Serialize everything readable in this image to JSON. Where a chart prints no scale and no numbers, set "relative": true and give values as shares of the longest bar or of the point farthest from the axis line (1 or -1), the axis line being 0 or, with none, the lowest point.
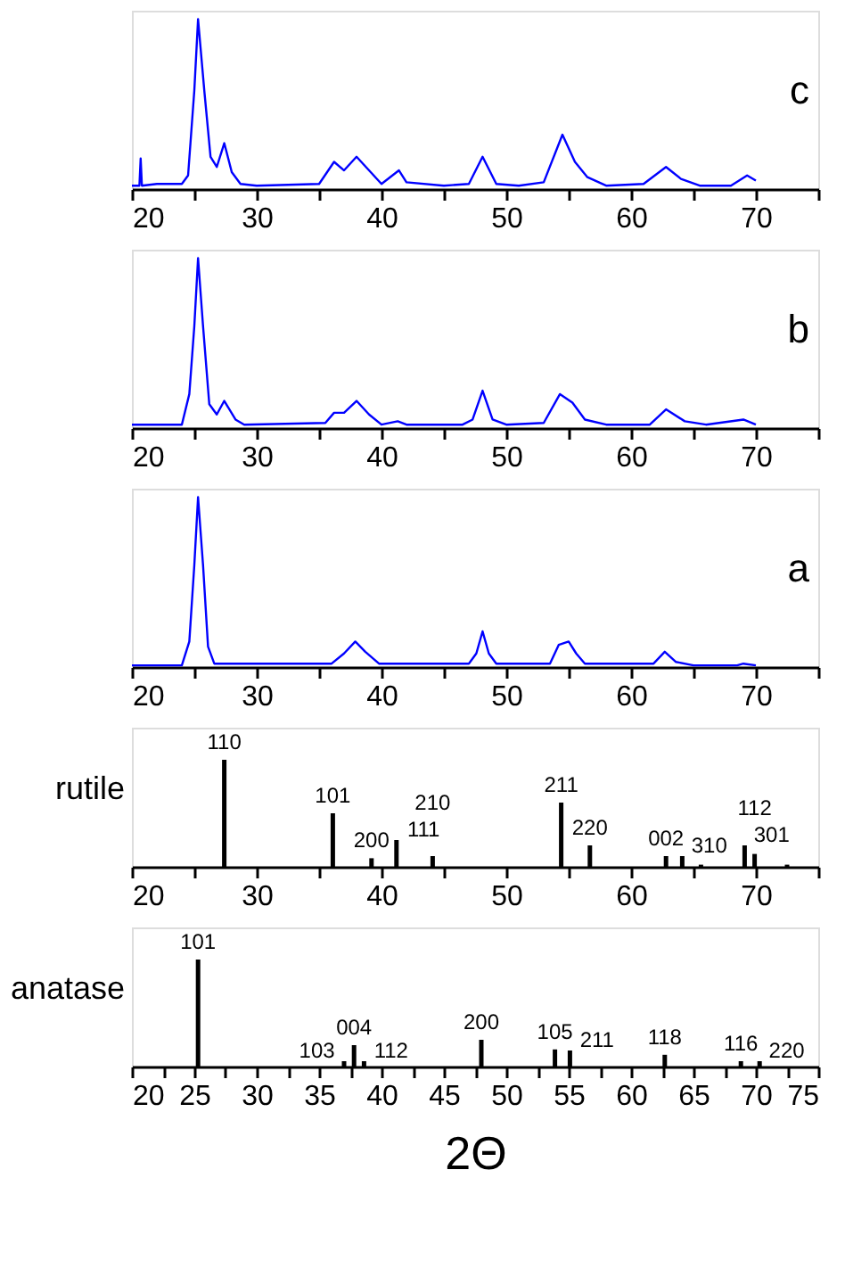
{
  "chart_data": [
    {
      "type": "line",
      "relative": true,
      "annotations": [
        "c"
      ],
      "xlim": [
        20,
        75
      ],
      "xticks": [
        20,
        {
          "value": 25,
          "label": null
        },
        30,
        {
          "value": 35,
          "label": null
        },
        40,
        {
          "value": 45,
          "label": null
        },
        50,
        {
          "value": 55,
          "label": null
        },
        60,
        {
          "value": 65,
          "label": null
        },
        70,
        {
          "value": 75,
          "label": null
        }
      ],
      "series": [
        {
          "color": "#0000ff",
          "x": [
            20,
            20.6,
            20.7,
            20.8,
            22,
            24,
            24.5,
            25,
            25.3,
            25.8,
            26.3,
            26.8,
            27.4,
            28,
            28.7,
            30,
            35,
            36.2,
            37,
            38,
            39,
            40,
            41.4,
            42,
            45,
            47,
            48.1,
            49.2,
            51,
            53,
            54.5,
            55.5,
            56.5,
            58,
            61,
            62.8,
            64,
            65.5,
            68,
            69.3,
            70
          ],
          "values": [
            0.02,
            0.02,
            0.18,
            0.02,
            0.03,
            0.03,
            0.08,
            0.58,
            1.0,
            0.58,
            0.19,
            0.13,
            0.27,
            0.1,
            0.03,
            0.02,
            0.03,
            0.16,
            0.11,
            0.19,
            0.11,
            0.03,
            0.11,
            0.04,
            0.02,
            0.03,
            0.19,
            0.03,
            0.02,
            0.04,
            0.32,
            0.16,
            0.07,
            0.02,
            0.03,
            0.13,
            0.06,
            0.02,
            0.02,
            0.08,
            0.05
          ]
        }
      ]
    },
    {
      "type": "line",
      "relative": true,
      "annotations": [
        "b"
      ],
      "xlim": [
        20,
        75
      ],
      "xticks": [
        20,
        {
          "value": 25,
          "label": null
        },
        30,
        {
          "value": 35,
          "label": null
        },
        40,
        {
          "value": 45,
          "label": null
        },
        50,
        {
          "value": 55,
          "label": null
        },
        60,
        {
          "value": 65,
          "label": null
        },
        70,
        {
          "value": 75,
          "label": null
        }
      ],
      "series": [
        {
          "color": "#0000ff",
          "x": [
            20,
            24,
            24.6,
            25,
            25.3,
            25.7,
            26.2,
            26.8,
            27.4,
            28.3,
            29,
            35.5,
            36.2,
            37,
            38,
            39,
            40,
            41.3,
            42,
            46.5,
            47.3,
            48.1,
            48.9,
            50,
            53,
            54.3,
            55.3,
            56.3,
            58,
            61.5,
            62.8,
            64.3,
            66,
            69,
            70
          ],
          "values": [
            0.02,
            0.02,
            0.2,
            0.6,
            1.0,
            0.6,
            0.14,
            0.08,
            0.16,
            0.05,
            0.02,
            0.03,
            0.09,
            0.09,
            0.16,
            0.08,
            0.02,
            0.04,
            0.02,
            0.02,
            0.05,
            0.22,
            0.05,
            0.02,
            0.03,
            0.2,
            0.15,
            0.05,
            0.02,
            0.02,
            0.11,
            0.04,
            0.02,
            0.05,
            0.02
          ]
        }
      ]
    },
    {
      "type": "line",
      "relative": true,
      "annotations": [
        "a"
      ],
      "xlim": [
        20,
        75
      ],
      "xticks": [
        20,
        {
          "value": 25,
          "label": null
        },
        30,
        {
          "value": 35,
          "label": null
        },
        40,
        {
          "value": 45,
          "label": null
        },
        50,
        {
          "value": 55,
          "label": null
        },
        60,
        {
          "value": 65,
          "label": null
        },
        70,
        {
          "value": 75,
          "label": null
        }
      ],
      "series": [
        {
          "color": "#0000ff",
          "x": [
            20,
            24,
            24.6,
            25,
            25.3,
            25.7,
            26.1,
            26.6,
            36,
            37,
            37.9,
            38.7,
            39.8,
            47,
            47.6,
            48.1,
            48.6,
            49.2,
            53.5,
            54.2,
            55,
            55.6,
            56.3,
            61.8,
            62.7,
            63.6,
            65,
            68.5,
            69,
            70
          ],
          "values": [
            0.01,
            0.01,
            0.15,
            0.6,
            1.0,
            0.6,
            0.12,
            0.02,
            0.02,
            0.08,
            0.15,
            0.09,
            0.02,
            0.02,
            0.08,
            0.21,
            0.08,
            0.02,
            0.02,
            0.13,
            0.15,
            0.08,
            0.02,
            0.02,
            0.09,
            0.03,
            0.01,
            0.01,
            0.02,
            0.01
          ]
        }
      ]
    },
    {
      "type": "bar",
      "relative": true,
      "ylabel": "rutile",
      "xlim": [
        20,
        75
      ],
      "xticks": [
        20,
        {
          "value": 25,
          "label": null
        },
        30,
        {
          "value": 35,
          "label": null
        },
        40,
        {
          "value": 45,
          "label": null
        },
        50,
        {
          "value": 55,
          "label": null
        },
        60,
        {
          "value": 65,
          "label": null
        },
        70,
        {
          "value": 75,
          "label": null
        }
      ],
      "x": [
        27.4,
        36.1,
        39.2,
        41.2,
        44.1,
        54.4,
        56.7,
        62.8,
        64.1,
        65.6,
        69.1,
        69.9,
        72.5
      ],
      "values": [
        1.0,
        0.5,
        0.08,
        0.25,
        0.1,
        0.6,
        0.2,
        0.1,
        0.1,
        0.02,
        0.2,
        0.12,
        0.02
      ],
      "color": "#000000",
      "annotations": [
        {
          "text": "110",
          "x": 27.4,
          "y": 1.0
        },
        {
          "text": "101",
          "x": 36.1,
          "y": 0.5
        },
        {
          "text": "200",
          "x": 39.2,
          "y": 0.08
        },
        {
          "text": "111",
          "x": 41.2,
          "y": 0.25
        },
        {
          "text": "210",
          "x": 44.1,
          "y": 0.1
        },
        {
          "text": "211",
          "x": 54.4,
          "y": 0.6
        },
        {
          "text": "220",
          "x": 56.7,
          "y": 0.2
        },
        {
          "text": "002",
          "x": 62.8,
          "y": 0.1
        },
        {
          "text": "310",
          "x": 64.1,
          "y": 0.1
        },
        {
          "text": "301",
          "x": 69.1,
          "y": 0.2
        },
        {
          "text": "112",
          "x": 69.9,
          "y": 0.12
        }
      ]
    },
    {
      "type": "bar",
      "relative": true,
      "ylabel": "anatase",
      "xlabel": "2Θ",
      "xlim": [
        20,
        75
      ],
      "xticks": [
        20,
        {
          "value": 22.5,
          "label": null
        },
        25,
        {
          "value": 27.5,
          "label": null
        },
        30,
        {
          "value": 32.5,
          "label": null
        },
        35,
        {
          "value": 37.5,
          "label": null
        },
        40,
        {
          "value": 42.5,
          "label": null
        },
        45,
        {
          "value": 47.5,
          "label": null
        },
        50,
        {
          "value": 52.5,
          "label": null
        },
        55,
        {
          "value": 57.5,
          "label": null
        },
        60,
        {
          "value": 62.5,
          "label": null
        },
        65,
        {
          "value": 67.5,
          "label": null
        },
        70,
        {
          "value": 72.5,
          "label": null
        },
        75
      ],
      "x": [
        25.3,
        37.0,
        37.8,
        38.6,
        48.0,
        53.9,
        55.1,
        62.7,
        68.8,
        70.3
      ],
      "values": [
        1.0,
        0.05,
        0.2,
        0.05,
        0.25,
        0.16,
        0.15,
        0.11,
        0.05,
        0.05
      ],
      "color": "#000000",
      "annotations": [
        {
          "text": "101",
          "x": 25.3,
          "y": 1.0
        },
        {
          "text": "103",
          "x": 37.0,
          "y": 0.05
        },
        {
          "text": "004",
          "x": 37.8,
          "y": 0.2
        },
        {
          "text": "112",
          "x": 38.6,
          "y": 0.05
        },
        {
          "text": "200",
          "x": 48.0,
          "y": 0.25
        },
        {
          "text": "105",
          "x": 53.9,
          "y": 0.16
        },
        {
          "text": "211",
          "x": 55.1,
          "y": 0.15
        },
        {
          "text": "118",
          "x": 62.7,
          "y": 0.11
        },
        {
          "text": "116",
          "x": 68.8,
          "y": 0.05
        },
        {
          "text": "220",
          "x": 70.3,
          "y": 0.05
        }
      ]
    }
  ]
}
